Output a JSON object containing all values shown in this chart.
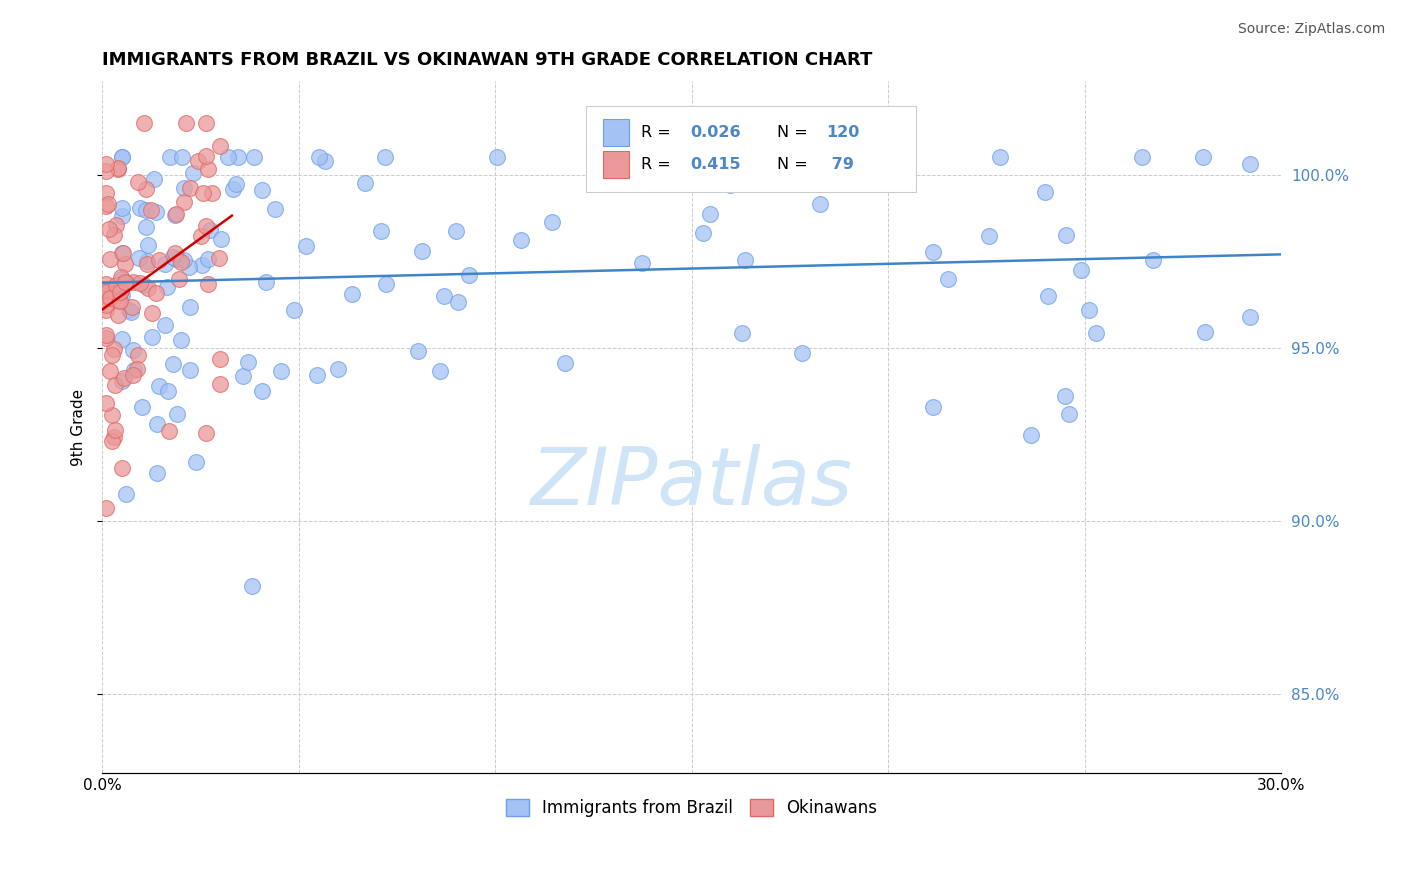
{
  "title": "IMMIGRANTS FROM BRAZIL VS OKINAWAN 9TH GRADE CORRELATION CHART",
  "source_text": "Source: ZipAtlas.com",
  "ylabel": "9th Grade",
  "legend_label1": "Immigrants from Brazil",
  "legend_label2": "Okinawans",
  "xlim": [
    0.0,
    0.3
  ],
  "ylim": [
    0.827,
    1.027
  ],
  "xticks": [
    0.0,
    0.05,
    0.1,
    0.15,
    0.2,
    0.25,
    0.3
  ],
  "xticklabels": [
    "0.0%",
    "",
    "",
    "",
    "",
    "",
    "30.0%"
  ],
  "yticks_right": [
    0.85,
    0.9,
    0.95,
    1.0
  ],
  "yticklabels_right": [
    "85.0%",
    "90.0%",
    "95.0%",
    "100.0%"
  ],
  "blue_color": "#a4c2f4",
  "pink_color": "#ea9999",
  "blue_edge": "#6d9eeb",
  "pink_edge": "#e06666",
  "trend_blue": "#3d85c8",
  "trend_pink": "#cc0000",
  "tick_color": "#4a86c8",
  "background": "#ffffff",
  "grid_color": "#cccccc",
  "watermark_color": "#d0e4f7",
  "title_fontsize": 13,
  "source_fontsize": 10,
  "tick_fontsize": 11,
  "ylabel_fontsize": 11
}
